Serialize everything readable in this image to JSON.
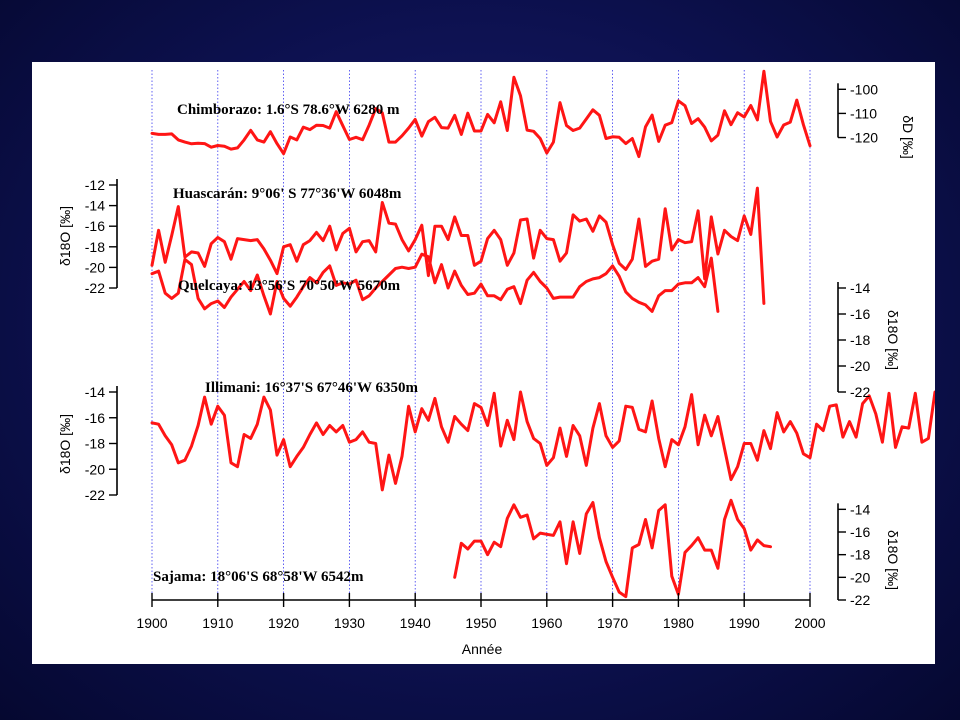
{
  "chart_data": {
    "type": "line",
    "xlabel": "Année",
    "xlim": [
      1900,
      2000
    ],
    "x_ticks": [
      1900,
      1910,
      1920,
      1930,
      1940,
      1950,
      1960,
      1970,
      1980,
      1990,
      2000
    ],
    "series": [
      {
        "name": "Chimborazo: 1.6°S 78.6°W 6280 m",
        "axis_side": "right",
        "axis_label": "δD [‰]",
        "ylim": [
          -126,
          -92
        ],
        "y_ticks": [
          -100,
          -110,
          -120
        ],
        "x_start": 1900,
        "values": [
          -118.3,
          -118.7,
          -118.7,
          -118.5,
          -121,
          -121.9,
          -122.6,
          -122.4,
          -122.5,
          -124,
          -123.3,
          -123.6,
          -124.8,
          -124.3,
          -121,
          -117,
          -121,
          -121.9,
          -117.6,
          -122.5,
          -126.7,
          -119.8,
          -121,
          -115.7,
          -116.7,
          -114.9,
          -115,
          -116.1,
          -109.3,
          -115.1,
          -120.8,
          -119.9,
          -120.9,
          -114.9,
          -108,
          -109.8,
          -121.9,
          -121.9,
          -119.3,
          -116.1,
          -112.5,
          -119.4,
          -113.4,
          -111.6,
          -115.9,
          -116.1,
          -110.8,
          -118.7,
          -109.9,
          -117.3,
          -117.3,
          -110.4,
          -113.9,
          -105.2,
          -117.1,
          -95,
          -102.7,
          -116.9,
          -117.4,
          -120.4,
          -126.4,
          -121.9,
          -105.5,
          -115,
          -117.1,
          -116.1,
          -112.3,
          -108.5,
          -110.8,
          -120.4,
          -119.7,
          -119.9,
          -122.5,
          -120.4,
          -127.9,
          -115.6,
          -110.7,
          -121.6,
          -114.9,
          -113.8,
          -104.8,
          -106.8,
          -114.2,
          -112.2,
          -115.7,
          -121.4,
          -119,
          -108.9,
          -114.7,
          -109.7,
          -111.5,
          -106.7,
          -112.7,
          -92.5,
          -113.3,
          -119.8,
          -114.8,
          -113.6,
          -104.5,
          -114.7,
          -123.4
        ]
      },
      {
        "name": "Huascarán: 9°06' S 77°36'W 6048m",
        "axis_side": "left",
        "axis_label": "δ18O [‰]",
        "ylim": [
          -22,
          -12
        ],
        "y_ticks": [
          -12,
          -14,
          -16,
          -18,
          -20,
          -22
        ],
        "x_start": 1900,
        "values": [
          -19.8,
          -16.4,
          -19.5,
          -16.9,
          -14.1,
          -19,
          -18.5,
          -18.6,
          -19.9,
          -17.7,
          -17.1,
          -17.5,
          -19.2,
          -17.2,
          -17.3,
          -17.4,
          -17.3,
          -18.2,
          -19.3,
          -20.6,
          -18,
          -17.8,
          -19.4,
          -17.8,
          -17.4,
          -16.6,
          -17.4,
          -16,
          -18.3,
          -16.7,
          -16.2,
          -18.5,
          -17.5,
          -17.4,
          -18.5,
          -13.7,
          -15.7,
          -15.8,
          -17.3,
          -18.4,
          -17.3,
          -15.9,
          -20.8,
          -16,
          -16,
          -17.3,
          -15.1,
          -16.9,
          -16.9,
          -19.8,
          -19.4,
          -17.2,
          -16.4,
          -17.3,
          -19.8,
          -18.6,
          -15.4,
          -15.3,
          -19.1,
          -16.4,
          -17.2,
          -17.3,
          -19.4,
          -18.6,
          -14.9,
          -15.5,
          -15.3,
          -16.5,
          -15,
          -15.6,
          -17.8,
          -19.6,
          -20.2,
          -19.2,
          -15.3,
          -19.9,
          -19.4,
          -19.2,
          -14.3,
          -18.3,
          -17.3,
          -17.6,
          -17.5,
          -14.5,
          -21.1,
          -15.1,
          -18.7,
          -16.4,
          -17,
          -17.4,
          -15,
          -16.8,
          -12.3,
          -23.5
        ]
      },
      {
        "name": "Quelcaya: 13°56'S 70°50'W 5670m",
        "axis_side": "right",
        "axis_label": "δ18O [‰]",
        "ylim": [
          -22,
          -14
        ],
        "y_ticks": [
          -14,
          -16,
          -18,
          -20,
          -22
        ],
        "x_start": 1900,
        "values": [
          -12.9,
          -12.7,
          -14.4,
          -14.8,
          -14.4,
          -11.8,
          -12.2,
          -14.8,
          -15.6,
          -15.2,
          -15,
          -15.5,
          -14.7,
          -14.1,
          -13.5,
          -14.2,
          -13,
          -14.6,
          -16,
          -13.5,
          -14.8,
          -15.4,
          -14.7,
          -13.9,
          -13.2,
          -13.6,
          -12.8,
          -12.3,
          -13.8,
          -13.6,
          -13.7,
          -13.4,
          -14.9,
          -14.6,
          -14,
          -13.5,
          -13,
          -12.5,
          -12.4,
          -12.5,
          -12.4,
          -11.4,
          -11.6,
          -13.6,
          -12.2,
          -14,
          -12.7,
          -13.8,
          -14.5,
          -14.4,
          -13.7,
          -14.6,
          -14.6,
          -14.9,
          -14.1,
          -13.9,
          -15.2,
          -13.4,
          -12.8,
          -13.5,
          -14,
          -14.8,
          -14.7,
          -14.7,
          -14.7,
          -13.9,
          -13.5,
          -13.3,
          -13.2,
          -12.9,
          -12.3,
          -13.1,
          -14.3,
          -14.8,
          -15.1,
          -15.3,
          -15.8,
          -14.6,
          -14.2,
          -14.2,
          -13.7,
          -13.6,
          -13.6,
          -13.2,
          -13.9,
          -11.7,
          -15.8
        ]
      },
      {
        "name": "Illimani: 16°37'S 67°46'W 6350m",
        "axis_side": "left",
        "axis_label": "δ18O [‰]",
        "ylim": [
          -22,
          -14
        ],
        "y_ticks": [
          -14,
          -16,
          -18,
          -20,
          -22
        ],
        "x_start": 1900,
        "values": [
          -16.4,
          -16.5,
          -17.4,
          -18.1,
          -19.5,
          -19.3,
          -18.2,
          -16.6,
          -14.4,
          -16.5,
          -15.1,
          -15.8,
          -19.5,
          -19.8,
          -17.3,
          -17.6,
          -16.5,
          -14.4,
          -15.4,
          -18.9,
          -17.7,
          -19.8,
          -19,
          -18.3,
          -17.3,
          -16.4,
          -17.3,
          -16.6,
          -17.1,
          -16.6,
          -17.9,
          -17.7,
          -17.1,
          -17.9,
          -18,
          -21.6,
          -18.9,
          -21.1,
          -19,
          -15.1,
          -17.1,
          -15.3,
          -16.2,
          -14.5,
          -16.7,
          -17.9,
          -15.9,
          -16.5,
          -17,
          -14.9,
          -15.2,
          -16.6,
          -14.1,
          -18.2,
          -16.2,
          -17.7,
          -14,
          -16.3,
          -17.6,
          -18,
          -19.7,
          -19.1,
          -16.8,
          -19,
          -16.6,
          -17.4,
          -19.7,
          -16.8,
          -14.9,
          -17.4,
          -18.3,
          -17.8,
          -15.1,
          -15.2,
          -16.9,
          -17.1,
          -14.7,
          -17.6,
          -19.8,
          -17.7,
          -18.1,
          -16.7,
          -14.2,
          -18.1,
          -15.8,
          -17.4,
          -15.9,
          -18.4,
          -20.8,
          -19.8,
          -18,
          -18,
          -19.3,
          -17,
          -18.4,
          -15.6,
          -17.1,
          -16.3,
          -17.2,
          -18.8,
          -19.1,
          -16.5,
          -17,
          -15.1,
          -15,
          -17.5,
          -16.3,
          -17.5,
          -14.9,
          -14.3,
          -15.7,
          -17.9,
          -14.1,
          -18.3,
          -16.7,
          -16.8,
          -14.1,
          -17.9,
          -17.6,
          -14,
          -15
        ]
      },
      {
        "name": "Sajama: 18°06'S 68°58'W 6542m",
        "axis_side": "right",
        "axis_label": "δ18O [‰]",
        "ylim": [
          -22,
          -13
        ],
        "y_ticks": [
          -14,
          -16,
          -18,
          -20,
          -22
        ],
        "x_start": 1946,
        "values": [
          -20,
          -17,
          -17.5,
          -16.8,
          -16.8,
          -18,
          -16.9,
          -17.3,
          -14.8,
          -13.6,
          -14.7,
          -14.5,
          -16.6,
          -16.1,
          -16.2,
          -16.3,
          -15.1,
          -18.8,
          -15.1,
          -17.9,
          -14.4,
          -13.4,
          -16.5,
          -18.6,
          -20,
          -21.3,
          -21.7,
          -17.4,
          -17.1,
          -14.9,
          -17.4,
          -14.1,
          -13.6,
          -19.9,
          -21.5,
          -17.8,
          -17.2,
          -16.5,
          -17.6,
          -17.6,
          -19.2,
          -14.9,
          -13.2,
          -14.9,
          -15.7,
          -17.6,
          -16.7,
          -17.2,
          -17.3
        ]
      }
    ]
  }
}
